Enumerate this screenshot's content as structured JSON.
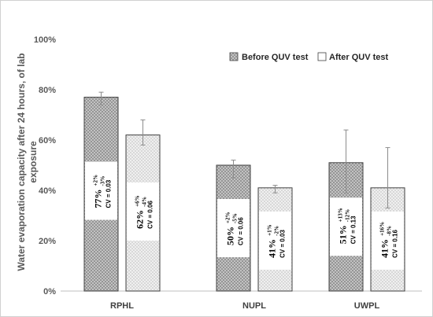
{
  "chart_data": {
    "type": "bar",
    "title": "",
    "xlabel": "",
    "ylabel": "Water evaporation capacity after 24 hours, of lab exposure",
    "ylabel_lines": [
      "Water evaporation capacity after 24 hours, of lab",
      "exposure"
    ],
    "ylim": [
      0,
      100
    ],
    "yticks": [
      "0%",
      "20%",
      "40%",
      "60%",
      "80%",
      "100%"
    ],
    "ytick_values": [
      0,
      20,
      40,
      60,
      80,
      100
    ],
    "categories": [
      "RPHL",
      "NUPL",
      "UWPL"
    ],
    "legend_position": "top-right",
    "grid": false,
    "series": [
      {
        "name": "Before QUV test",
        "pattern": "dark-crosshatch",
        "values": [
          77,
          50,
          51
        ],
        "err_plus": [
          2,
          2,
          13
        ],
        "err_minus": [
          3,
          5,
          12
        ],
        "pct_labels": [
          "77%",
          "50%",
          "51%"
        ],
        "plus_labels": [
          "+2%",
          "+2%",
          "+13%"
        ],
        "minus_labels": [
          "-3%",
          "-5%",
          "-12%"
        ],
        "cv_labels": [
          "CV = 0.03",
          "CV = 0.06",
          "CV = 0.13"
        ]
      },
      {
        "name": "After QUV test",
        "pattern": "light-crosshatch",
        "values": [
          62,
          41,
          41
        ],
        "err_plus": [
          6,
          1,
          16
        ],
        "err_minus": [
          4,
          2,
          8
        ],
        "pct_labels": [
          "62%",
          "41%",
          "41%"
        ],
        "plus_labels": [
          "+6%",
          "+1%",
          "+16%"
        ],
        "minus_labels": [
          "-4%",
          "-2%",
          "-8%"
        ],
        "cv_labels": [
          "CV = 0.06",
          "CV = 0.03",
          "CV = 0.16"
        ]
      }
    ]
  },
  "colors": {
    "axis": "#bfbfbf",
    "bar_outline": "#404040",
    "error_bar": "#8c8c8c",
    "hatch_dark": "#9a9a9a",
    "hatch_light": "#d6d6d6",
    "label_box": "#ffffff"
  }
}
